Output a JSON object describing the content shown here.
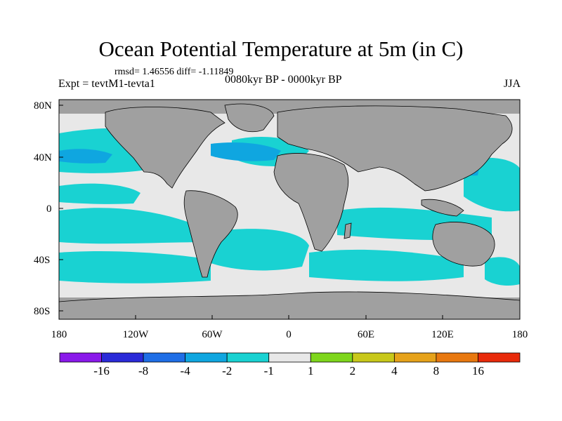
{
  "title": "Ocean Potential Temperature at 5m (in C)",
  "stats_text": "rmsd= 1.46556 diff= -1.11849",
  "left_label": "Expt = tevtM1-tevta1",
  "center_label": "0080kyr BP - 0000kyr BP",
  "right_label": "JJA",
  "lat_ticks": [
    "80N",
    "40N",
    "0",
    "40S",
    "80S"
  ],
  "lon_ticks": [
    "180",
    "120W",
    "60W",
    "0",
    "60E",
    "120E",
    "180"
  ],
  "colorbar": {
    "colors": [
      "#8a19ea",
      "#2a2ad8",
      "#1f6ee6",
      "#0fa6e0",
      "#19d2d2",
      "#e8e8e8",
      "#7ed61c",
      "#c8c81a",
      "#e6a21a",
      "#e8780f",
      "#e82a0a"
    ],
    "labels": [
      "-16",
      "-8",
      "-4",
      "-2",
      "-1",
      "1",
      "2",
      "4",
      "8",
      "16"
    ]
  },
  "colors": {
    "land": "#a0a0a0",
    "ocean_small_change": "#e8e8e8",
    "ocean_cooling_moderate": "#19d2d2",
    "ocean_cooling_strong": "#0fa6e0",
    "ocean_cooling_stronger": "#1f6ee6"
  }
}
